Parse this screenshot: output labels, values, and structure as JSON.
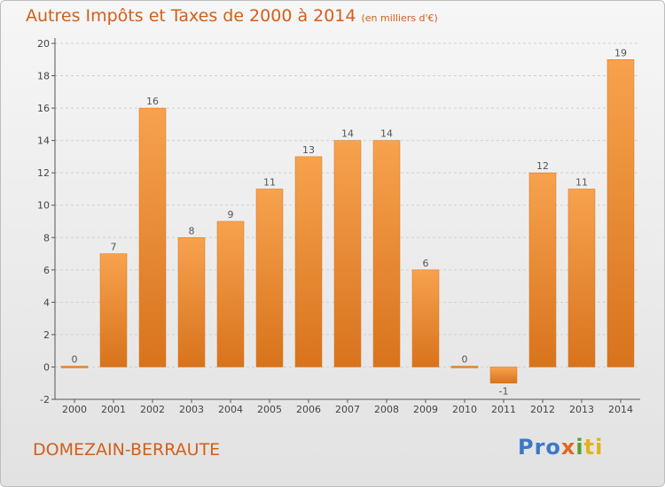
{
  "title": "Autres Impôts et Taxes de 2000 à 2014",
  "subtitle": "(en milliers d'€)",
  "commune": "DOMEZAIN-BERRAUTE",
  "logo": [
    "Pro",
    "x",
    "i",
    "ti"
  ],
  "colors": {
    "title": "#d25f19",
    "bar_top": "#f7a24e",
    "bar_bottom": "#d8731c",
    "axis": "#555555",
    "grid": "#cfcfcf"
  },
  "chart_data": {
    "type": "bar",
    "categories": [
      "2000",
      "2001",
      "2002",
      "2003",
      "2004",
      "2005",
      "2006",
      "2007",
      "2008",
      "2009",
      "2010",
      "2011",
      "2012",
      "2013",
      "2014"
    ],
    "values": [
      0,
      7,
      16,
      8,
      9,
      11,
      13,
      14,
      14,
      6,
      0,
      -1,
      12,
      11,
      19
    ],
    "value_labels": [
      "0",
      "7",
      "16",
      "8",
      "9",
      "11",
      "13",
      "14",
      "14",
      "6",
      "0",
      "-1",
      "12",
      "11",
      "19"
    ],
    "yticks": [
      -2,
      0,
      2,
      4,
      6,
      8,
      10,
      12,
      14,
      16,
      18,
      20
    ],
    "ylim": [
      -2,
      20
    ],
    "grid": true
  }
}
